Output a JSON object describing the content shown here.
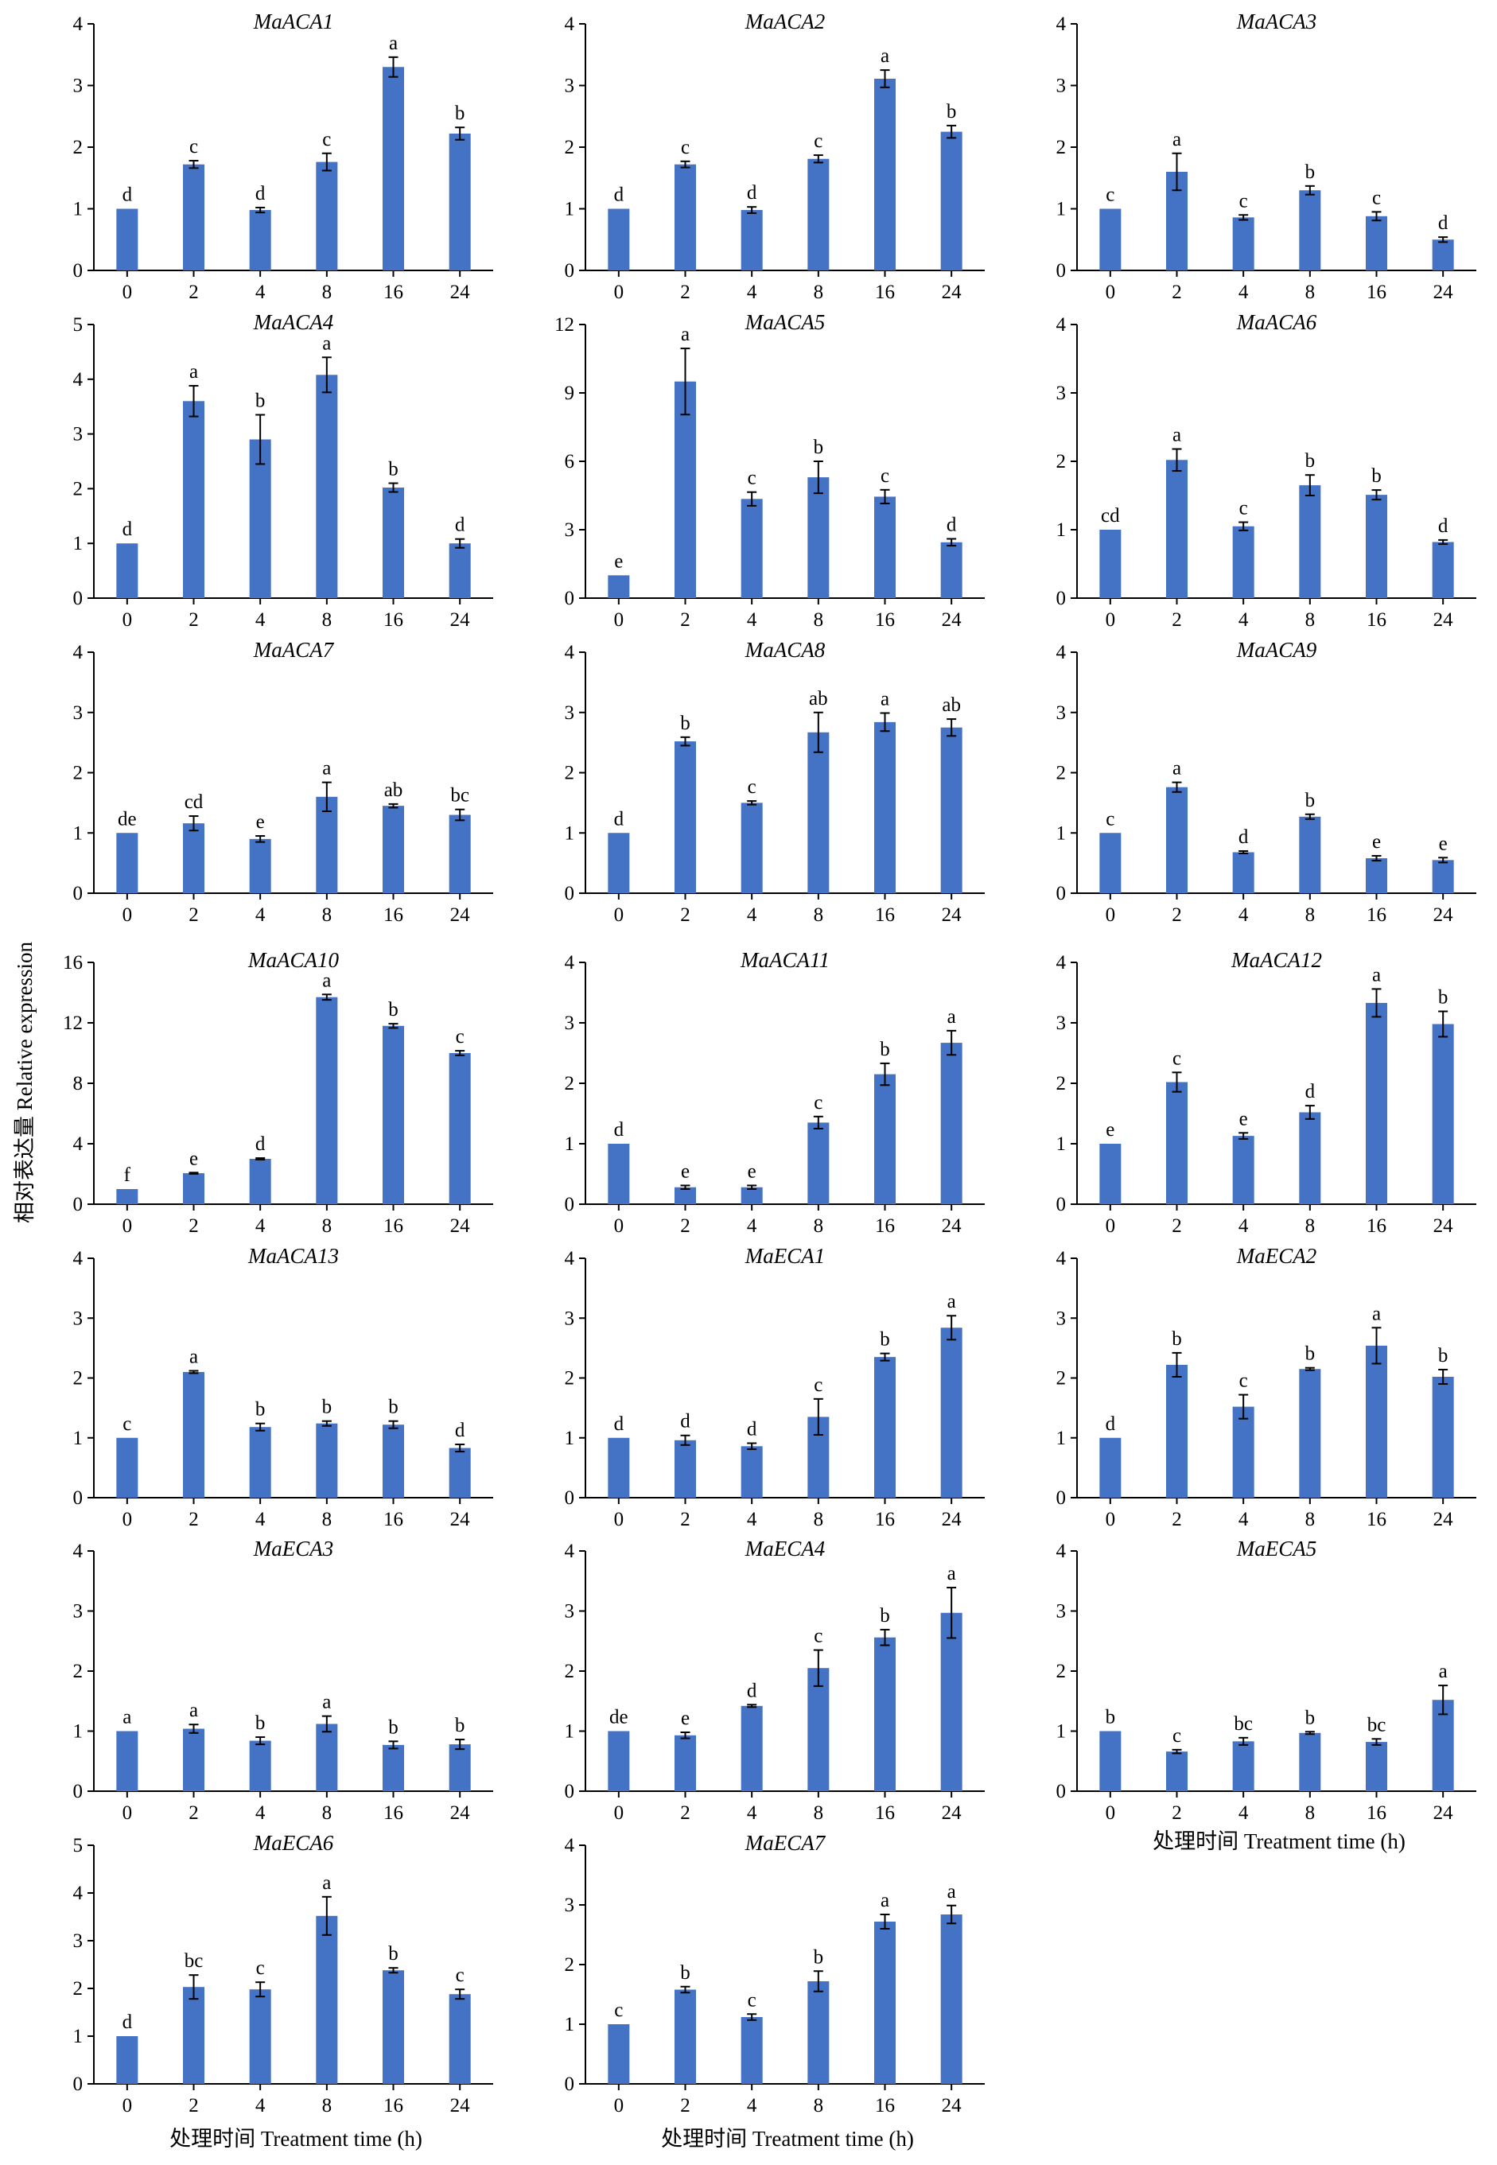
{
  "y_axis_title": "相对表达量 Relative expression",
  "x_axis_title": "处理时间 Treatment time (h)",
  "colors": {
    "bar": "#4472C4",
    "axis": "#000000"
  },
  "chart_data": [
    {
      "type": "bar",
      "title": "MaACA1",
      "categories": [
        "0",
        "2",
        "4",
        "8",
        "16",
        "24"
      ],
      "values": [
        1.0,
        1.72,
        0.98,
        1.76,
        3.3,
        2.22
      ],
      "errors": [
        0.0,
        0.06,
        0.04,
        0.14,
        0.16,
        0.1
      ],
      "labels": [
        "d",
        "c",
        "d",
        "c",
        "a",
        "b"
      ],
      "ylim": [
        0,
        4
      ],
      "yticks": [
        0,
        1,
        2,
        3,
        4
      ],
      "xlabel": "",
      "ylabel": ""
    },
    {
      "type": "bar",
      "title": "MaACA2",
      "categories": [
        "0",
        "2",
        "4",
        "8",
        "16",
        "24"
      ],
      "values": [
        1.0,
        1.72,
        0.98,
        1.81,
        3.11,
        2.25
      ],
      "errors": [
        0.0,
        0.05,
        0.05,
        0.06,
        0.14,
        0.1
      ],
      "labels": [
        "d",
        "c",
        "d",
        "c",
        "a",
        "b"
      ],
      "ylim": [
        0,
        4
      ],
      "yticks": [
        0,
        1,
        2,
        3,
        4
      ],
      "xlabel": "",
      "ylabel": ""
    },
    {
      "type": "bar",
      "title": "MaACA3",
      "categories": [
        "0",
        "2",
        "4",
        "8",
        "16",
        "24"
      ],
      "values": [
        1.0,
        1.6,
        0.86,
        1.3,
        0.88,
        0.5
      ],
      "errors": [
        0.0,
        0.3,
        0.04,
        0.07,
        0.07,
        0.04
      ],
      "labels": [
        "c",
        "a",
        "c",
        "b",
        "c",
        "d"
      ],
      "ylim": [
        0,
        4
      ],
      "yticks": [
        0,
        1,
        2,
        3,
        4
      ],
      "xlabel": "",
      "ylabel": ""
    },
    {
      "type": "bar",
      "title": "MaACA4",
      "categories": [
        "0",
        "2",
        "4",
        "8",
        "16",
        "24"
      ],
      "values": [
        1.0,
        3.6,
        2.9,
        4.08,
        2.02,
        1.0
      ],
      "errors": [
        0.0,
        0.28,
        0.45,
        0.32,
        0.08,
        0.08
      ],
      "labels": [
        "d",
        "a",
        "b",
        "a",
        "b",
        "d"
      ],
      "ylim": [
        0,
        5
      ],
      "yticks": [
        0,
        1,
        2,
        3,
        4,
        5
      ],
      "xlabel": "",
      "ylabel": ""
    },
    {
      "type": "bar",
      "title": "MaACA5",
      "categories": [
        "0",
        "2",
        "4",
        "8",
        "16",
        "24"
      ],
      "values": [
        1.0,
        9.5,
        4.35,
        5.3,
        4.45,
        2.45
      ],
      "errors": [
        0.0,
        1.45,
        0.3,
        0.7,
        0.3,
        0.15
      ],
      "labels": [
        "e",
        "a",
        "c",
        "b",
        "c",
        "d"
      ],
      "ylim": [
        0,
        12
      ],
      "yticks": [
        0,
        3,
        6,
        9,
        12
      ],
      "xlabel": "",
      "ylabel": ""
    },
    {
      "type": "bar",
      "title": "MaACA6",
      "categories": [
        "0",
        "2",
        "4",
        "8",
        "16",
        "24"
      ],
      "values": [
        1.0,
        2.02,
        1.05,
        1.65,
        1.51,
        0.82
      ],
      "errors": [
        0.0,
        0.16,
        0.06,
        0.15,
        0.07,
        0.03
      ],
      "labels": [
        "cd",
        "a",
        "c",
        "b",
        "b",
        "d"
      ],
      "ylim": [
        0,
        4
      ],
      "yticks": [
        0,
        1,
        2,
        3,
        4
      ],
      "xlabel": "",
      "ylabel": ""
    },
    {
      "type": "bar",
      "title": "MaACA7",
      "categories": [
        "0",
        "2",
        "4",
        "8",
        "16",
        "24"
      ],
      "values": [
        1.0,
        1.16,
        0.9,
        1.6,
        1.45,
        1.3
      ],
      "errors": [
        0.0,
        0.12,
        0.05,
        0.24,
        0.03,
        0.09
      ],
      "labels": [
        "de",
        "cd",
        "e",
        "a",
        "ab",
        "bc"
      ],
      "ylim": [
        0,
        4
      ],
      "yticks": [
        0,
        1,
        2,
        3,
        4
      ],
      "xlabel": "",
      "ylabel": ""
    },
    {
      "type": "bar",
      "title": "MaACA8",
      "categories": [
        "0",
        "2",
        "4",
        "8",
        "16",
        "24"
      ],
      "values": [
        1.0,
        2.52,
        1.5,
        2.67,
        2.84,
        2.75
      ],
      "errors": [
        0.0,
        0.07,
        0.03,
        0.33,
        0.15,
        0.14
      ],
      "labels": [
        "d",
        "b",
        "c",
        "ab",
        "a",
        "ab"
      ],
      "ylim": [
        0,
        4
      ],
      "yticks": [
        0,
        1,
        2,
        3,
        4
      ],
      "xlabel": "",
      "ylabel": ""
    },
    {
      "type": "bar",
      "title": "MaACA9",
      "categories": [
        "0",
        "2",
        "4",
        "8",
        "16",
        "24"
      ],
      "values": [
        1.0,
        1.76,
        0.68,
        1.27,
        0.58,
        0.55
      ],
      "errors": [
        0.0,
        0.08,
        0.02,
        0.04,
        0.04,
        0.04
      ],
      "labels": [
        "c",
        "a",
        "d",
        "b",
        "e",
        "e"
      ],
      "ylim": [
        0,
        4
      ],
      "yticks": [
        0,
        1,
        2,
        3,
        4
      ],
      "xlabel": "",
      "ylabel": ""
    },
    {
      "type": "bar",
      "title": "MaACA10",
      "categories": [
        "0",
        "2",
        "4",
        "8",
        "16",
        "24"
      ],
      "values": [
        1.0,
        2.05,
        3.0,
        13.7,
        11.8,
        10.0
      ],
      "errors": [
        0.0,
        0.04,
        0.05,
        0.18,
        0.14,
        0.15
      ],
      "labels": [
        "f",
        "e",
        "d",
        "a",
        "b",
        "c"
      ],
      "ylim": [
        0,
        16
      ],
      "yticks": [
        0,
        4,
        8,
        12,
        16
      ],
      "xlabel": "",
      "ylabel": ""
    },
    {
      "type": "bar",
      "title": "MaACA11",
      "categories": [
        "0",
        "2",
        "4",
        "8",
        "16",
        "24"
      ],
      "values": [
        1.0,
        0.28,
        0.28,
        1.35,
        2.15,
        2.67
      ],
      "errors": [
        0.0,
        0.03,
        0.03,
        0.1,
        0.18,
        0.2
      ],
      "labels": [
        "d",
        "e",
        "e",
        "c",
        "b",
        "a"
      ],
      "ylim": [
        0,
        4
      ],
      "yticks": [
        0,
        1,
        2,
        3,
        4
      ],
      "xlabel": "",
      "ylabel": ""
    },
    {
      "type": "bar",
      "title": "MaACA12",
      "categories": [
        "0",
        "2",
        "4",
        "8",
        "16",
        "24"
      ],
      "values": [
        1.0,
        2.02,
        1.13,
        1.52,
        3.33,
        2.98
      ],
      "errors": [
        0.0,
        0.16,
        0.05,
        0.11,
        0.23,
        0.21
      ],
      "labels": [
        "e",
        "c",
        "e",
        "d",
        "a",
        "b"
      ],
      "ylim": [
        0,
        4
      ],
      "yticks": [
        0,
        1,
        2,
        3,
        4
      ],
      "xlabel": "",
      "ylabel": ""
    },
    {
      "type": "bar",
      "title": "MaACA13",
      "categories": [
        "0",
        "2",
        "4",
        "8",
        "16",
        "24"
      ],
      "values": [
        1.0,
        2.1,
        1.18,
        1.24,
        1.22,
        0.83
      ],
      "errors": [
        0.0,
        0.02,
        0.06,
        0.04,
        0.06,
        0.06
      ],
      "labels": [
        "c",
        "a",
        "b",
        "b",
        "b",
        "d"
      ],
      "ylim": [
        0,
        4
      ],
      "yticks": [
        0,
        1,
        2,
        3,
        4
      ],
      "xlabel": "",
      "ylabel": ""
    },
    {
      "type": "bar",
      "title": "MaECA1",
      "categories": [
        "0",
        "2",
        "4",
        "8",
        "16",
        "24"
      ],
      "values": [
        1.0,
        0.96,
        0.86,
        1.35,
        2.35,
        2.84
      ],
      "errors": [
        0.0,
        0.08,
        0.05,
        0.3,
        0.06,
        0.2
      ],
      "labels": [
        "d",
        "d",
        "d",
        "c",
        "b",
        "a"
      ],
      "ylim": [
        0,
        4
      ],
      "yticks": [
        0,
        1,
        2,
        3,
        4
      ],
      "xlabel": "",
      "ylabel": ""
    },
    {
      "type": "bar",
      "title": "MaECA2",
      "categories": [
        "0",
        "2",
        "4",
        "8",
        "16",
        "24"
      ],
      "values": [
        1.0,
        2.22,
        1.52,
        2.15,
        2.54,
        2.02
      ],
      "errors": [
        0.0,
        0.2,
        0.2,
        0.02,
        0.3,
        0.12
      ],
      "labels": [
        "d",
        "b",
        "c",
        "b",
        "a",
        "b"
      ],
      "ylim": [
        0,
        4
      ],
      "yticks": [
        0,
        1,
        2,
        3,
        4
      ],
      "xlabel": "",
      "ylabel": ""
    },
    {
      "type": "bar",
      "title": "MaECA3",
      "categories": [
        "0",
        "2",
        "4",
        "8",
        "16",
        "24"
      ],
      "values": [
        1.0,
        1.04,
        0.84,
        1.12,
        0.77,
        0.78
      ],
      "errors": [
        0.0,
        0.07,
        0.06,
        0.13,
        0.06,
        0.08
      ],
      "labels": [
        "a",
        "a",
        "b",
        "a",
        "b",
        "b"
      ],
      "ylim": [
        0,
        4
      ],
      "yticks": [
        0,
        1,
        2,
        3,
        4
      ],
      "xlabel": "",
      "ylabel": ""
    },
    {
      "type": "bar",
      "title": "MaECA4",
      "categories": [
        "0",
        "2",
        "4",
        "8",
        "16",
        "24"
      ],
      "values": [
        1.0,
        0.93,
        1.42,
        2.05,
        2.56,
        2.97
      ],
      "errors": [
        0.0,
        0.05,
        0.02,
        0.3,
        0.13,
        0.42
      ],
      "labels": [
        "de",
        "e",
        "d",
        "c",
        "b",
        "a"
      ],
      "ylim": [
        0,
        4
      ],
      "yticks": [
        0,
        1,
        2,
        3,
        4
      ],
      "xlabel": "",
      "ylabel": ""
    },
    {
      "type": "bar",
      "title": "MaECA5",
      "categories": [
        "0",
        "2",
        "4",
        "8",
        "16",
        "24"
      ],
      "values": [
        1.0,
        0.66,
        0.83,
        0.97,
        0.82,
        1.52
      ],
      "errors": [
        0.0,
        0.03,
        0.06,
        0.02,
        0.05,
        0.24
      ],
      "labels": [
        "b",
        "c",
        "bc",
        "b",
        "bc",
        "a"
      ],
      "ylim": [
        0,
        4
      ],
      "yticks": [
        0,
        1,
        2,
        3,
        4
      ],
      "xlabel": "",
      "ylabel": ""
    },
    {
      "type": "bar",
      "title": "MaECA6",
      "categories": [
        "0",
        "2",
        "4",
        "8",
        "16",
        "24"
      ],
      "values": [
        1.0,
        2.03,
        1.98,
        3.52,
        2.38,
        1.88
      ],
      "errors": [
        0.0,
        0.25,
        0.15,
        0.4,
        0.05,
        0.1
      ],
      "labels": [
        "d",
        "bc",
        "c",
        "a",
        "b",
        "c"
      ],
      "ylim": [
        0,
        5
      ],
      "yticks": [
        0,
        1,
        2,
        3,
        4,
        5
      ],
      "xlabel": "",
      "ylabel": ""
    },
    {
      "type": "bar",
      "title": "MaECA7",
      "categories": [
        "0",
        "2",
        "4",
        "8",
        "16",
        "24"
      ],
      "values": [
        1.0,
        1.58,
        1.12,
        1.72,
        2.72,
        2.84
      ],
      "errors": [
        0.0,
        0.05,
        0.05,
        0.17,
        0.12,
        0.15
      ],
      "labels": [
        "c",
        "b",
        "c",
        "b",
        "a",
        "a"
      ],
      "ylim": [
        0,
        4
      ],
      "yticks": [
        0,
        1,
        2,
        3,
        4
      ],
      "xlabel": "",
      "ylabel": ""
    }
  ]
}
